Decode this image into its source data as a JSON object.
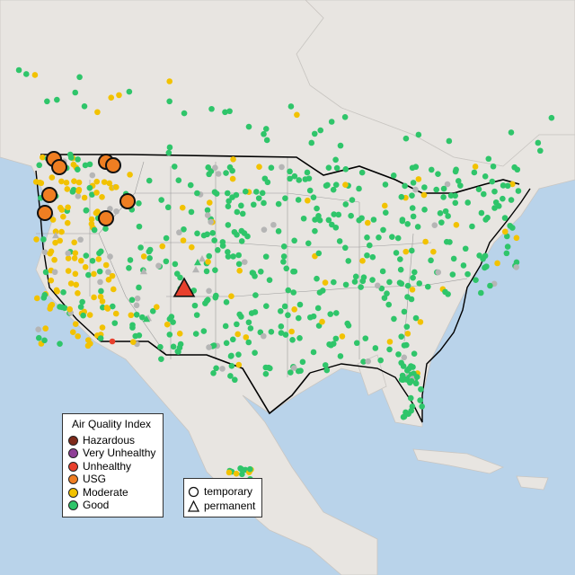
{
  "legend_aqi": {
    "title": "Air Quality Index",
    "items": [
      {
        "label": "Hazardous",
        "color": "#7e2a1a"
      },
      {
        "label": "Very Unhealthy",
        "color": "#8f3f97"
      },
      {
        "label": "Unhealthy",
        "color": "#e8402d"
      },
      {
        "label": "USG",
        "color": "#ef7e22"
      },
      {
        "label": "Moderate",
        "color": "#f2c200"
      },
      {
        "label": "Good",
        "color": "#2fc56a"
      }
    ]
  },
  "legend_type": {
    "items": [
      {
        "label": "temporary",
        "shape": "circle"
      },
      {
        "label": "permanent",
        "shape": "triangle"
      }
    ]
  }
}
